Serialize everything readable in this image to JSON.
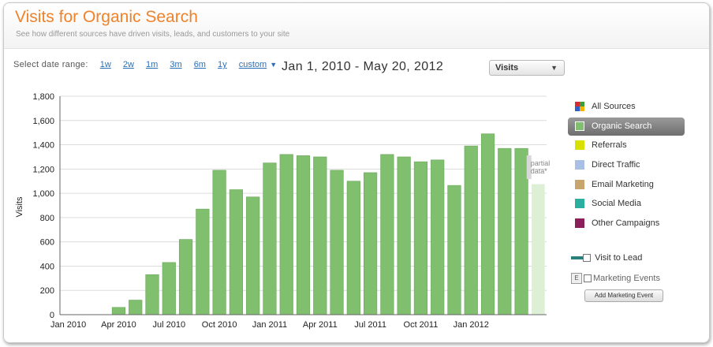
{
  "header": {
    "title": "Visits for Organic Search",
    "subtitle": "See how different sources have driven visits, leads, and customers to your site"
  },
  "date_range": {
    "label": "Select date range:",
    "options": [
      "1w",
      "2w",
      "1m",
      "3m",
      "6m",
      "1y"
    ],
    "custom_label": "custom",
    "current": "Jan 1, 2010 - May 20, 2012"
  },
  "metric_select": {
    "value": "Visits"
  },
  "legend": {
    "items": [
      {
        "label": "All Sources",
        "color": "#cc2222"
      },
      {
        "label": "Organic Search",
        "color": "#7fbf6e",
        "active": true
      },
      {
        "label": "Referrals",
        "color": "#d8e000"
      },
      {
        "label": "Direct Traffic",
        "color": "#a9bfe6"
      },
      {
        "label": "Email Marketing",
        "color": "#c9a56e"
      },
      {
        "label": "Social Media",
        "color": "#2aaea0"
      },
      {
        "label": "Other Campaigns",
        "color": "#8a1f5a"
      }
    ],
    "all_sources_colors": [
      "#d22f2f",
      "#3f9b3f",
      "#2f5fc9",
      "#f2b400"
    ]
  },
  "options": {
    "visit_to_lead": "Visit to Lead",
    "marketing_events": "Marketing Events",
    "marketing_events_icon": "E",
    "add_event_button": "Add Marketing Event"
  },
  "chart_data": {
    "type": "bar",
    "ylabel": "Visits",
    "ylim": [
      0,
      1800
    ],
    "yticks": [
      0,
      200,
      400,
      600,
      800,
      1000,
      1200,
      1400,
      1600,
      1800
    ],
    "ytick_labels": [
      "0",
      "200",
      "400",
      "600",
      "800",
      "1,000",
      "1,200",
      "1,400",
      "1,600",
      "1,800"
    ],
    "categories": [
      "Jan 2010",
      "Feb 2010",
      "Mar 2010",
      "Apr 2010",
      "May 2010",
      "Jun 2010",
      "Jul 2010",
      "Aug 2010",
      "Sep 2010",
      "Oct 2010",
      "Nov 2010",
      "Dec 2010",
      "Jan 2011",
      "Feb 2011",
      "Mar 2011",
      "Apr 2011",
      "May 2011",
      "Jun 2011",
      "Jul 2011",
      "Aug 2011",
      "Sep 2011",
      "Oct 2011",
      "Nov 2011",
      "Dec 2011",
      "Jan 2012",
      "Feb 2012",
      "Mar 2012",
      "Apr 2012",
      "May 2012"
    ],
    "x_tick_labels": [
      "Jan 2010",
      "Apr 2010",
      "Jul 2010",
      "Oct 2010",
      "Jan 2011",
      "Apr 2011",
      "Jul 2011",
      "Oct 2011",
      "Jan 2012"
    ],
    "series": [
      {
        "name": "Organic Search",
        "color": "#7fbf6e",
        "values": [
          0,
          0,
          0,
          60,
          120,
          330,
          430,
          620,
          870,
          1190,
          1030,
          970,
          1250,
          1320,
          1310,
          1300,
          1190,
          1100,
          1170,
          1320,
          1300,
          1260,
          1275,
          1065,
          1390,
          1490,
          1370,
          1370,
          1075
        ]
      }
    ],
    "partial_last": true,
    "partial_label": "partial data*",
    "grid": true
  }
}
